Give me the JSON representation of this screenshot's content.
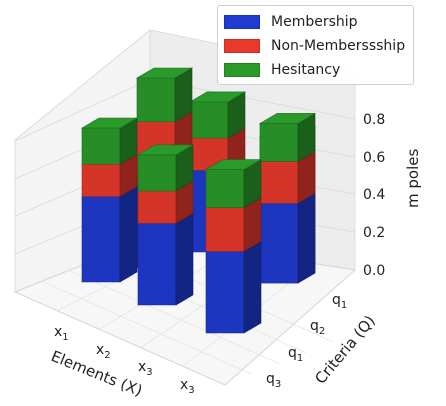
{
  "chart_data": {
    "type": "bar",
    "subtype": "stacked-3d-bar",
    "xlabel": "Elements (X)",
    "ylabel": "Criteria (Q)",
    "zlabel": "m poles",
    "x_ticks": [
      "x1",
      "x2",
      "x3",
      "x3"
    ],
    "y_ticks": [
      "q1",
      "q2",
      "q1",
      "q3"
    ],
    "z_ticks": [
      "0.0",
      "0.2",
      "0.4",
      "0.6",
      "0.8"
    ],
    "zlim": [
      0,
      1
    ],
    "z_axis_inverted": true,
    "grid": true,
    "legend_position": "top-right",
    "series": [
      {
        "name": "Membership",
        "color": "#1f3bd1"
      },
      {
        "name": "Non-Memberssship",
        "color": "#e8392b"
      },
      {
        "name": "Hesitancy",
        "color": "#2a9a2a"
      }
    ],
    "bars": [
      {
        "x": "x1",
        "y": "q3",
        "membership": 0.45,
        "non_membership": 0.17,
        "hesitancy": 0.19
      },
      {
        "x": "x2",
        "y": "q3",
        "membership": 0.45,
        "non_membership": 0.32,
        "hesitancy": 0.23
      },
      {
        "x": "x3",
        "y": "q1",
        "membership": 0.43,
        "non_membership": 0.17,
        "hesitancy": 0.19
      },
      {
        "x": "x3",
        "y": "q1",
        "membership": 0.43,
        "non_membership": 0.17,
        "hesitancy": 0.19
      },
      {
        "x": "x2",
        "y": "q2",
        "membership": 0.42,
        "non_membership": 0.16,
        "hesitancy": 0.19
      },
      {
        "x": "x3",
        "y": "q2",
        "membership": 0.43,
        "non_membership": 0.23,
        "hesitancy": 0.2
      },
      {
        "x": "x3",
        "y": "q1",
        "membership": 0.42,
        "non_membership": 0.22,
        "hesitancy": 0.2
      }
    ]
  }
}
